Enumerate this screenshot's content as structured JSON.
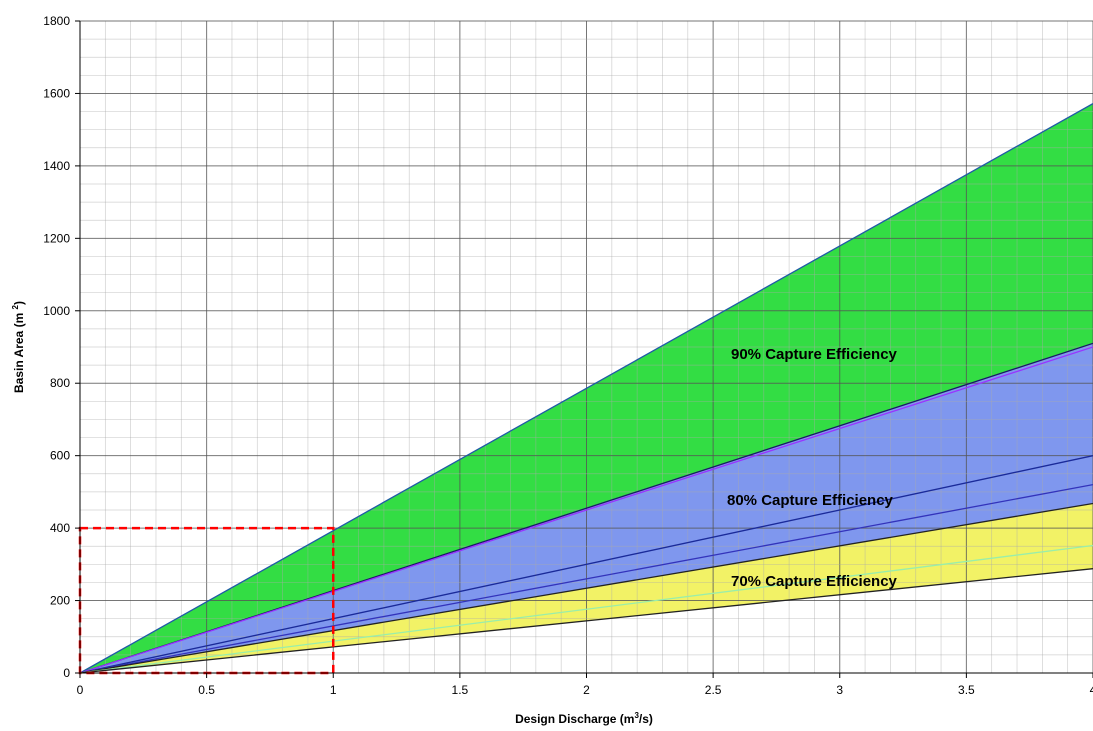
{
  "chart_data": {
    "type": "area",
    "xlabel": "Design Discharge (m3/s)",
    "ylabel": "Basin Area (m 2)",
    "xlim": [
      0,
      4
    ],
    "ylim": [
      0,
      1800
    ],
    "x_ticks": [
      "0",
      "0.5",
      "1",
      "1.5",
      "2",
      "2.5",
      "3",
      "3.5",
      "4"
    ],
    "y_ticks": [
      "0",
      "200",
      "400",
      "600",
      "800",
      "1000",
      "1200",
      "1400",
      "1600",
      "1800"
    ],
    "grid": true,
    "bands": [
      {
        "label": "90% Capture Efficiency",
        "color": "#33dd44",
        "lower_slope": 227.5,
        "upper_slope": 393
      },
      {
        "label": "80% Capture Efficiency",
        "color": "#7f97ee",
        "lower_slope": 117,
        "upper_slope": 227.5
      },
      {
        "label": "70% Capture Efficiency",
        "color": "#f2f266",
        "lower_slope": 72,
        "upper_slope": 117
      }
    ],
    "lines": [
      {
        "slope": 393,
        "color": "#1f5aa6"
      },
      {
        "slope": 227.5,
        "color": "#1a1a66"
      },
      {
        "slope": 225,
        "color": "#9933ff"
      },
      {
        "slope": 150,
        "color": "#1a2a99"
      },
      {
        "slope": 130,
        "color": "#3333bb"
      },
      {
        "slope": 117,
        "color": "#222222"
      },
      {
        "slope": 88,
        "color": "#99eeaa"
      },
      {
        "slope": 72,
        "color": "#222222"
      }
    ],
    "highlight_box": {
      "x": [
        0,
        1
      ],
      "y": [
        0,
        400
      ],
      "color": "#ff0000"
    }
  }
}
